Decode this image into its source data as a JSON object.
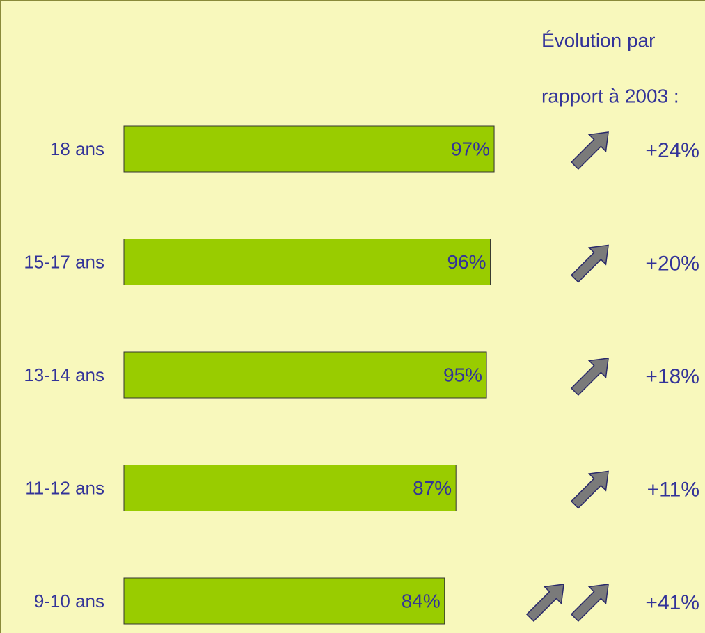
{
  "chart_data": {
    "type": "bar",
    "side_title": [
      "Évolution par",
      "rapport à 2003 :"
    ],
    "categories": [
      "18 ans",
      "15-17 ans",
      "13-14 ans",
      "11-12 ans",
      "9-10 ans"
    ],
    "values": [
      97,
      96,
      95,
      87,
      84
    ],
    "value_labels": [
      "97%",
      "96%",
      "95%",
      "87%",
      "84%"
    ],
    "evolution_labels": [
      "+24%",
      "+20%",
      "+18%",
      "+11%",
      "+41%"
    ],
    "arrows": [
      1,
      1,
      1,
      1,
      2
    ],
    "color": "#99cc00",
    "text_color": "#333399",
    "background": "#f8f8bc"
  }
}
